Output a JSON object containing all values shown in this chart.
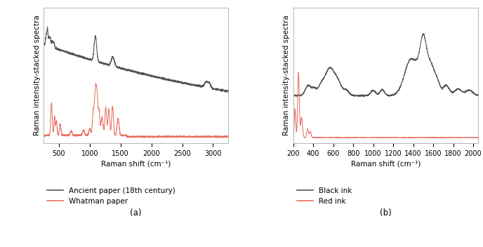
{
  "panel_a": {
    "xlim": [
      250,
      3250
    ],
    "xticks": [
      500,
      1000,
      1500,
      2000,
      2500,
      3000
    ],
    "xlabel": "Raman shift (cm⁻¹)",
    "ylabel": "Raman intensity-stacked spectra",
    "legend": [
      "Ancient paper (18th century)",
      "Whatman paper"
    ],
    "label_a": "(a)"
  },
  "panel_b": {
    "xlim": [
      200,
      2050
    ],
    "xticks": [
      200,
      400,
      600,
      800,
      1000,
      1200,
      1400,
      1600,
      1800,
      2000
    ],
    "xlabel": "Raman shift (cm⁻¹)",
    "ylabel": "Raman intensity-stacked spectra",
    "legend": [
      "Black ink",
      "Red ink"
    ],
    "label_b": "(b)"
  },
  "bg_color": "#ffffff",
  "line_color_dark": "#555555",
  "line_color_red": "#e87060"
}
